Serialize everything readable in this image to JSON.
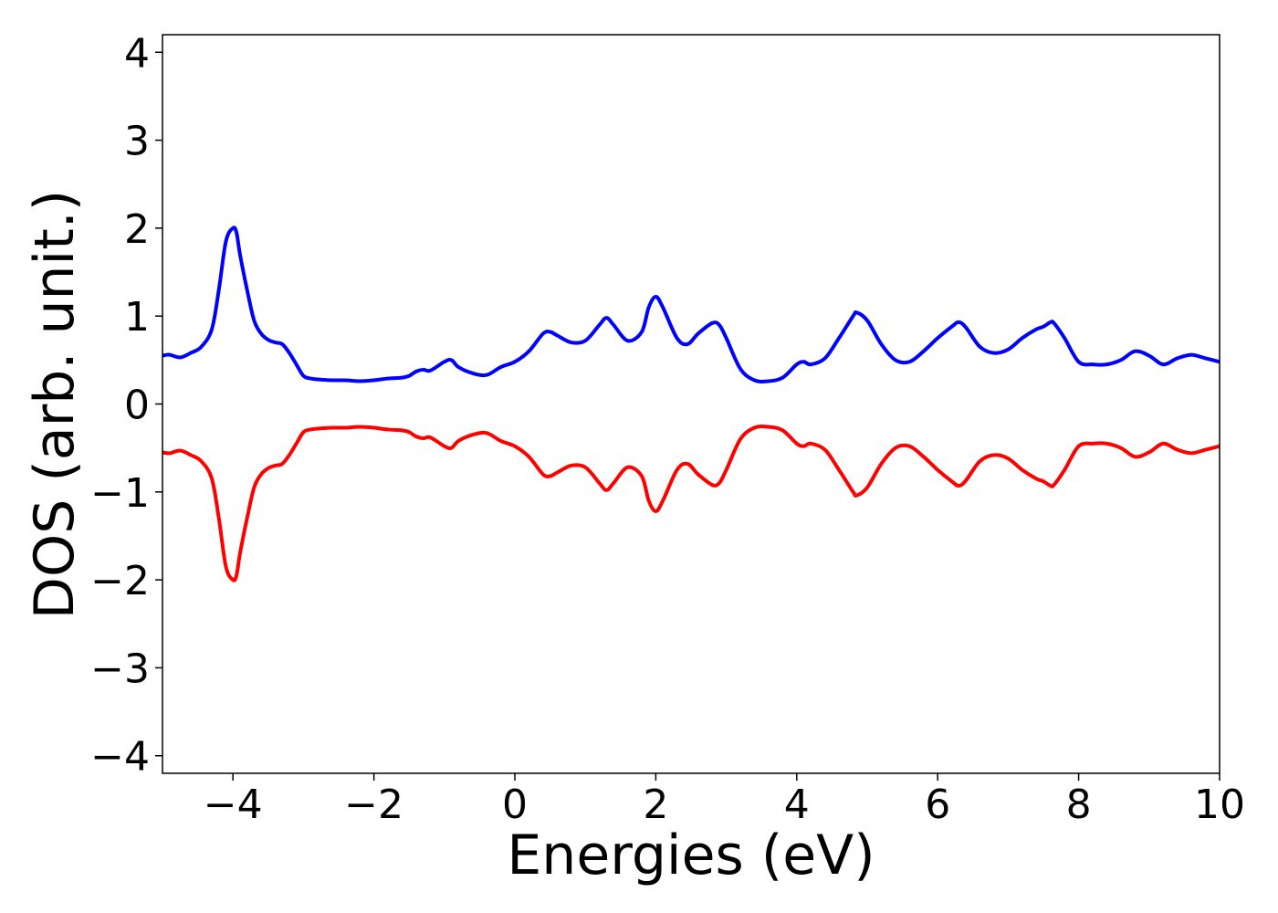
{
  "chart_data": {
    "type": "line",
    "title": "",
    "xlabel": "Energies (eV)",
    "ylabel": "DOS (arb. unit.)",
    "xlim": [
      -5,
      10
    ],
    "ylim": [
      -4.2,
      4.2
    ],
    "x_ticks": [
      -4,
      -2,
      0,
      2,
      4,
      6,
      8,
      10
    ],
    "x_tick_labels": [
      "−4",
      "−2",
      "0",
      "2",
      "4",
      "6",
      "8",
      "10"
    ],
    "y_ticks": [
      4,
      3,
      2,
      1,
      0,
      -1,
      -2,
      -3,
      -4
    ],
    "y_tick_labels": [
      "4",
      "3",
      "2",
      "1",
      "0",
      "−1",
      "−2",
      "−3",
      "−4"
    ],
    "grid": false,
    "legend": "none",
    "series": [
      {
        "color": "#0000ff",
        "x": [
          -5.0,
          -4.9,
          -4.75,
          -4.6,
          -4.45,
          -4.3,
          -4.2,
          -4.1,
          -4.0,
          -3.95,
          -3.9,
          -3.8,
          -3.7,
          -3.6,
          -3.5,
          -3.4,
          -3.3,
          -3.2,
          -3.1,
          -3.0,
          -2.9,
          -2.8,
          -2.6,
          -2.4,
          -2.2,
          -2.0,
          -1.8,
          -1.6,
          -1.5,
          -1.4,
          -1.3,
          -1.2,
          -1.0,
          -0.9,
          -0.8,
          -0.6,
          -0.4,
          -0.2,
          0.0,
          0.2,
          0.4,
          0.5,
          0.6,
          0.8,
          1.0,
          1.2,
          1.3,
          1.4,
          1.6,
          1.8,
          1.9,
          2.0,
          2.1,
          2.3,
          2.45,
          2.6,
          2.8,
          2.9,
          3.0,
          3.2,
          3.4,
          3.6,
          3.8,
          4.0,
          4.1,
          4.2,
          4.4,
          4.6,
          4.8,
          4.85,
          5.0,
          5.2,
          5.4,
          5.6,
          5.8,
          6.0,
          6.2,
          6.3,
          6.4,
          6.6,
          6.8,
          7.0,
          7.2,
          7.4,
          7.5,
          7.6,
          7.65,
          7.8,
          8.0,
          8.2,
          8.4,
          8.6,
          8.8,
          9.0,
          9.2,
          9.4,
          9.6,
          9.8,
          10.0
        ],
        "y": [
          0.55,
          0.56,
          0.53,
          0.58,
          0.65,
          0.85,
          1.3,
          1.85,
          2.0,
          1.95,
          1.7,
          1.3,
          0.95,
          0.8,
          0.73,
          0.7,
          0.68,
          0.58,
          0.45,
          0.32,
          0.29,
          0.28,
          0.27,
          0.27,
          0.26,
          0.27,
          0.29,
          0.3,
          0.32,
          0.37,
          0.39,
          0.38,
          0.48,
          0.5,
          0.42,
          0.35,
          0.33,
          0.42,
          0.48,
          0.6,
          0.8,
          0.82,
          0.78,
          0.7,
          0.72,
          0.9,
          0.98,
          0.9,
          0.72,
          0.82,
          1.1,
          1.22,
          1.1,
          0.75,
          0.68,
          0.8,
          0.92,
          0.9,
          0.75,
          0.4,
          0.27,
          0.26,
          0.3,
          0.45,
          0.48,
          0.45,
          0.52,
          0.75,
          1.0,
          1.04,
          0.95,
          0.68,
          0.5,
          0.48,
          0.6,
          0.75,
          0.88,
          0.93,
          0.87,
          0.65,
          0.58,
          0.62,
          0.75,
          0.85,
          0.88,
          0.93,
          0.92,
          0.75,
          0.48,
          0.45,
          0.45,
          0.5,
          0.6,
          0.55,
          0.45,
          0.52,
          0.56,
          0.52,
          0.48
        ]
      },
      {
        "color": "#ff0000",
        "x": [
          -5.0,
          -4.9,
          -4.75,
          -4.6,
          -4.45,
          -4.3,
          -4.2,
          -4.1,
          -4.0,
          -3.95,
          -3.9,
          -3.8,
          -3.7,
          -3.6,
          -3.5,
          -3.4,
          -3.3,
          -3.2,
          -3.1,
          -3.0,
          -2.9,
          -2.8,
          -2.6,
          -2.4,
          -2.2,
          -2.0,
          -1.8,
          -1.6,
          -1.5,
          -1.4,
          -1.3,
          -1.2,
          -1.0,
          -0.9,
          -0.8,
          -0.6,
          -0.4,
          -0.2,
          0.0,
          0.2,
          0.4,
          0.5,
          0.6,
          0.8,
          1.0,
          1.2,
          1.3,
          1.4,
          1.6,
          1.8,
          1.9,
          2.0,
          2.1,
          2.3,
          2.45,
          2.6,
          2.8,
          2.9,
          3.0,
          3.2,
          3.4,
          3.6,
          3.8,
          4.0,
          4.1,
          4.2,
          4.4,
          4.6,
          4.8,
          4.85,
          5.0,
          5.2,
          5.4,
          5.6,
          5.8,
          6.0,
          6.2,
          6.3,
          6.4,
          6.6,
          6.8,
          7.0,
          7.2,
          7.4,
          7.5,
          7.6,
          7.65,
          7.8,
          8.0,
          8.2,
          8.4,
          8.6,
          8.8,
          9.0,
          9.2,
          9.4,
          9.6,
          9.8,
          10.0
        ],
        "y": [
          -0.55,
          -0.56,
          -0.53,
          -0.58,
          -0.65,
          -0.85,
          -1.3,
          -1.85,
          -2.0,
          -1.95,
          -1.7,
          -1.3,
          -0.95,
          -0.8,
          -0.73,
          -0.7,
          -0.68,
          -0.58,
          -0.45,
          -0.32,
          -0.29,
          -0.28,
          -0.27,
          -0.27,
          -0.26,
          -0.27,
          -0.29,
          -0.3,
          -0.32,
          -0.37,
          -0.39,
          -0.38,
          -0.48,
          -0.5,
          -0.42,
          -0.35,
          -0.33,
          -0.42,
          -0.48,
          -0.6,
          -0.8,
          -0.82,
          -0.78,
          -0.7,
          -0.72,
          -0.9,
          -0.98,
          -0.9,
          -0.72,
          -0.82,
          -1.1,
          -1.22,
          -1.1,
          -0.75,
          -0.68,
          -0.8,
          -0.92,
          -0.9,
          -0.75,
          -0.4,
          -0.27,
          -0.26,
          -0.3,
          -0.45,
          -0.48,
          -0.45,
          -0.52,
          -0.75,
          -1.0,
          -1.04,
          -0.95,
          -0.68,
          -0.5,
          -0.48,
          -0.6,
          -0.75,
          -0.88,
          -0.93,
          -0.87,
          -0.65,
          -0.58,
          -0.62,
          -0.75,
          -0.85,
          -0.88,
          -0.93,
          -0.92,
          -0.75,
          -0.48,
          -0.45,
          -0.45,
          -0.5,
          -0.6,
          -0.55,
          -0.45,
          -0.52,
          -0.56,
          -0.52,
          -0.48
        ]
      }
    ]
  }
}
